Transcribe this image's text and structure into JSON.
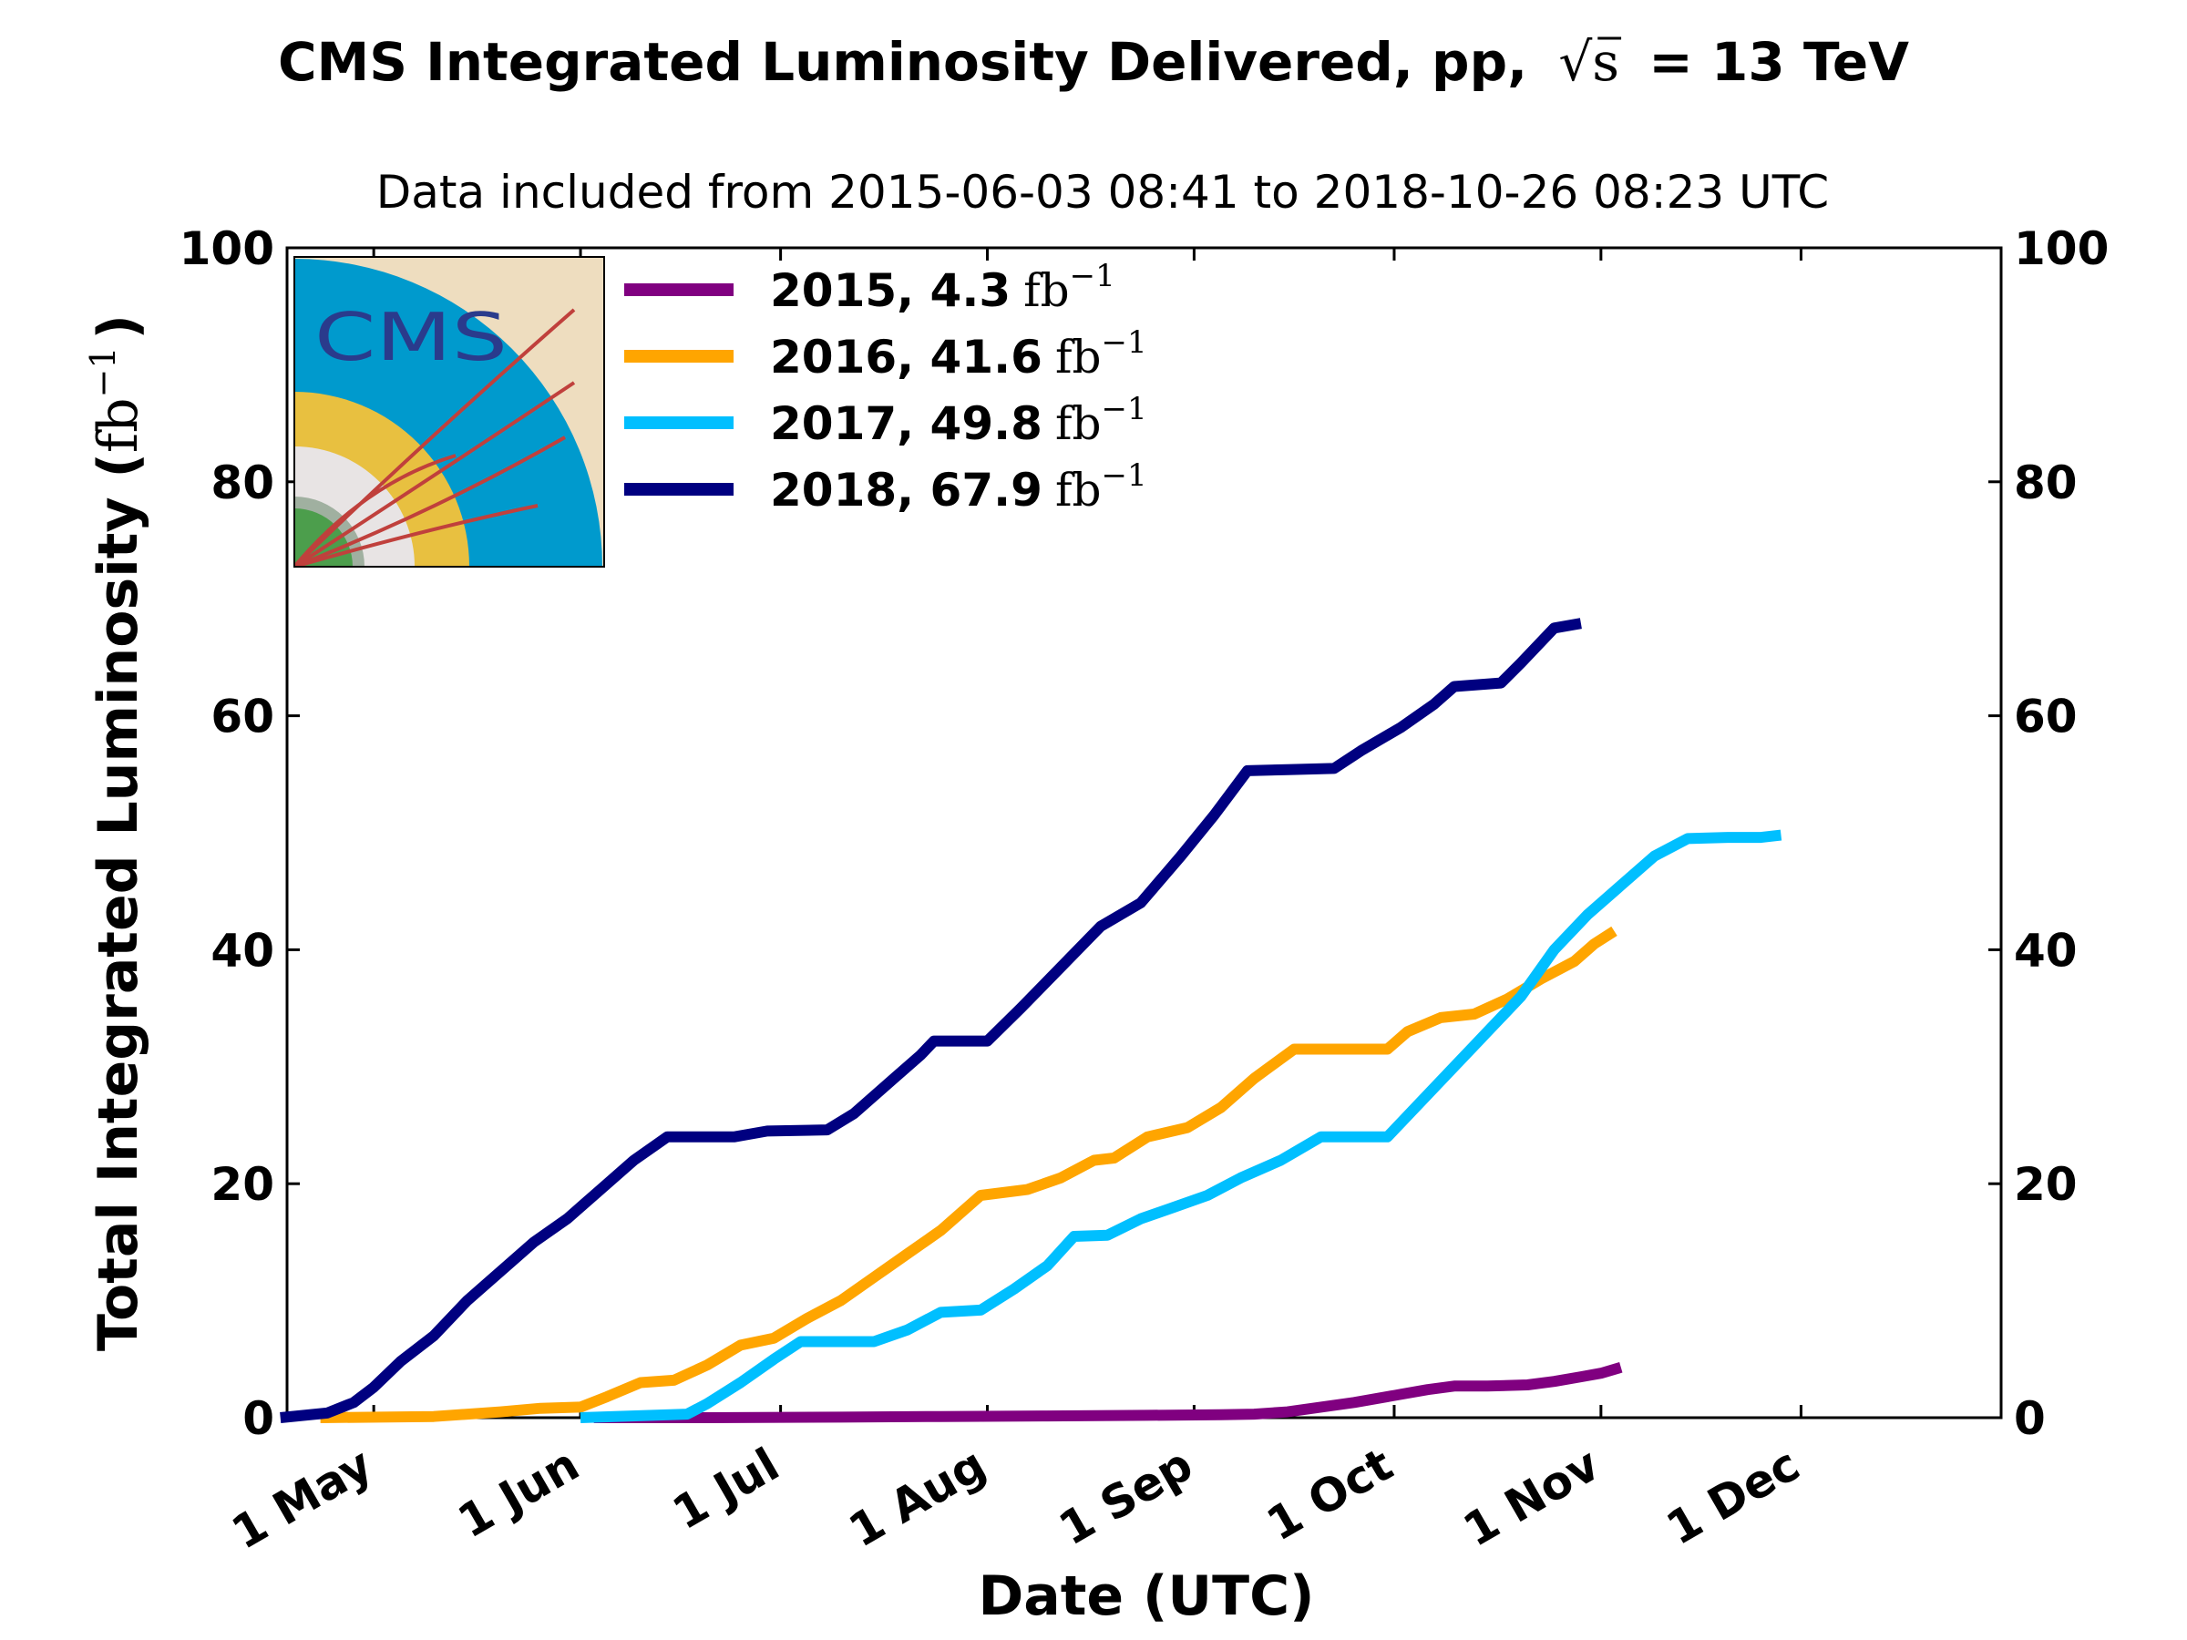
{
  "chart_data": {
    "type": "line",
    "title_prefix": "CMS Integrated Luminosity Delivered, pp,",
    "title_sqrt": "√s",
    "title_suffix": "= 13 TeV",
    "subtitle": "Data included from 2015-06-03 08:41 to 2018-10-26 08:23 UTC",
    "xlabel": "Date (UTC)",
    "ylabel_main": "Total Integrated Luminosity (",
    "ylabel_unit": "fb",
    "ylabel_exp": "−1",
    "ylabel_close": ")",
    "xlim": [
      "04-18",
      "12-31"
    ],
    "ylim": [
      0,
      100
    ],
    "x_ticks": [
      {
        "date": "05-01",
        "label": "1 May"
      },
      {
        "date": "06-01",
        "label": "1 Jun"
      },
      {
        "date": "07-01",
        "label": "1 Jul"
      },
      {
        "date": "08-01",
        "label": "1 Aug"
      },
      {
        "date": "09-01",
        "label": "1 Sep"
      },
      {
        "date": "10-01",
        "label": "1 Oct"
      },
      {
        "date": "11-01",
        "label": "1 Nov"
      },
      {
        "date": "12-01",
        "label": "1 Dec"
      }
    ],
    "y_ticks": [
      "0",
      "20",
      "40",
      "60",
      "80",
      "100"
    ],
    "legend_position": "top-left",
    "series": [
      {
        "name": "2015",
        "label_main": "2015, 4.3",
        "label_unit": "fb",
        "label_exp": "−1",
        "color": "#800080",
        "points": [
          [
            "06-03",
            0
          ],
          [
            "06-20",
            0
          ],
          [
            "07-10",
            0.05
          ],
          [
            "07-25",
            0.1
          ],
          [
            "08-10",
            0.15
          ],
          [
            "08-25",
            0.2
          ],
          [
            "09-05",
            0.25
          ],
          [
            "09-10",
            0.3
          ],
          [
            "09-15",
            0.5
          ],
          [
            "09-20",
            0.9
          ],
          [
            "09-25",
            1.3
          ],
          [
            "10-01",
            1.9
          ],
          [
            "10-06",
            2.4
          ],
          [
            "10-10",
            2.7
          ],
          [
            "10-15",
            2.7
          ],
          [
            "10-21",
            2.8
          ],
          [
            "10-25",
            3.1
          ],
          [
            "10-29",
            3.5
          ],
          [
            "11-01",
            3.8
          ],
          [
            "11-04",
            4.3
          ]
        ]
      },
      {
        "name": "2016",
        "label_main": "2016, 41.6",
        "label_unit": "fb",
        "label_exp": "−1",
        "color": "#FFA500",
        "points": [
          [
            "04-23",
            0
          ],
          [
            "05-10",
            0.1
          ],
          [
            "05-20",
            0.5
          ],
          [
            "05-26",
            0.8
          ],
          [
            "06-01",
            0.9
          ],
          [
            "06-05",
            1.8
          ],
          [
            "06-10",
            3.0
          ],
          [
            "06-15",
            3.2
          ],
          [
            "06-20",
            4.5
          ],
          [
            "06-25",
            6.2
          ],
          [
            "06-30",
            6.8
          ],
          [
            "07-05",
            8.5
          ],
          [
            "07-10",
            10.0
          ],
          [
            "07-15",
            12.0
          ],
          [
            "07-20",
            14.0
          ],
          [
            "07-25",
            16.0
          ],
          [
            "07-31",
            19.0
          ],
          [
            "08-07",
            19.5
          ],
          [
            "08-12",
            20.5
          ],
          [
            "08-17",
            22.0
          ],
          [
            "08-20",
            22.2
          ],
          [
            "08-25",
            24.0
          ],
          [
            "08-31",
            24.8
          ],
          [
            "09-05",
            26.5
          ],
          [
            "09-10",
            29.0
          ],
          [
            "09-16",
            31.5
          ],
          [
            "09-24",
            31.5
          ],
          [
            "09-30",
            31.5
          ],
          [
            "10-03",
            33.0
          ],
          [
            "10-08",
            34.2
          ],
          [
            "10-13",
            34.5
          ],
          [
            "10-18",
            35.8
          ],
          [
            "10-23",
            37.5
          ],
          [
            "10-28",
            39.0
          ],
          [
            "10-31",
            40.5
          ],
          [
            "11-03",
            41.6
          ]
        ]
      },
      {
        "name": "2017",
        "label_main": "2017, 49.8",
        "label_unit": "fb",
        "label_exp": "−1",
        "color": "#00BFFF",
        "points": [
          [
            "06-01",
            0
          ],
          [
            "06-17",
            0.3
          ],
          [
            "06-20",
            1.2
          ],
          [
            "06-25",
            3.0
          ],
          [
            "06-30",
            5.0
          ],
          [
            "07-04",
            6.5
          ],
          [
            "07-10",
            6.5
          ],
          [
            "07-15",
            6.5
          ],
          [
            "07-20",
            7.5
          ],
          [
            "07-25",
            9.0
          ],
          [
            "07-31",
            9.2
          ],
          [
            "08-05",
            11.0
          ],
          [
            "08-10",
            13.0
          ],
          [
            "08-14",
            15.5
          ],
          [
            "08-19",
            15.6
          ],
          [
            "08-24",
            17.0
          ],
          [
            "08-29",
            18.0
          ],
          [
            "09-03",
            19.0
          ],
          [
            "09-08",
            20.5
          ],
          [
            "09-14",
            22.0
          ],
          [
            "09-20",
            24.0
          ],
          [
            "09-30",
            24.0
          ],
          [
            "10-05",
            27.0
          ],
          [
            "10-10",
            30.0
          ],
          [
            "10-15",
            33.0
          ],
          [
            "10-20",
            36.0
          ],
          [
            "10-25",
            40.0
          ],
          [
            "10-30",
            43.0
          ],
          [
            "11-04",
            45.5
          ],
          [
            "11-09",
            48.0
          ],
          [
            "11-14",
            49.5
          ],
          [
            "11-20",
            49.6
          ],
          [
            "11-25",
            49.6
          ],
          [
            "11-28",
            49.8
          ]
        ]
      },
      {
        "name": "2018",
        "label_main": "2018, 67.9",
        "label_unit": "fb",
        "label_exp": "−1",
        "color": "#000080",
        "points": [
          [
            "04-17",
            0
          ],
          [
            "04-24",
            0.4
          ],
          [
            "04-28",
            1.3
          ],
          [
            "05-01",
            2.6
          ],
          [
            "05-05",
            4.8
          ],
          [
            "05-10",
            7.0
          ],
          [
            "05-15",
            10.0
          ],
          [
            "05-20",
            12.5
          ],
          [
            "05-25",
            15.0
          ],
          [
            "05-30",
            17.0
          ],
          [
            "06-04",
            19.5
          ],
          [
            "06-09",
            22.0
          ],
          [
            "06-14",
            24.0
          ],
          [
            "06-19",
            24.0
          ],
          [
            "06-24",
            24.0
          ],
          [
            "06-29",
            24.5
          ],
          [
            "07-08",
            24.6
          ],
          [
            "07-12",
            26.0
          ],
          [
            "07-18",
            29.0
          ],
          [
            "07-22",
            31.0
          ],
          [
            "07-24",
            32.2
          ],
          [
            "08-01",
            32.2
          ],
          [
            "08-06",
            35.0
          ],
          [
            "08-12",
            38.5
          ],
          [
            "08-18",
            42.0
          ],
          [
            "08-24",
            44.0
          ],
          [
            "08-30",
            48.0
          ],
          [
            "09-04",
            51.5
          ],
          [
            "09-09",
            55.3
          ],
          [
            "09-15",
            55.4
          ],
          [
            "09-22",
            55.5
          ],
          [
            "09-26",
            57.0
          ],
          [
            "10-02",
            59.0
          ],
          [
            "10-07",
            61.0
          ],
          [
            "10-10",
            62.5
          ],
          [
            "10-17",
            62.8
          ],
          [
            "10-20",
            64.5
          ],
          [
            "10-25",
            67.5
          ],
          [
            "10-29",
            67.9
          ]
        ]
      }
    ]
  }
}
